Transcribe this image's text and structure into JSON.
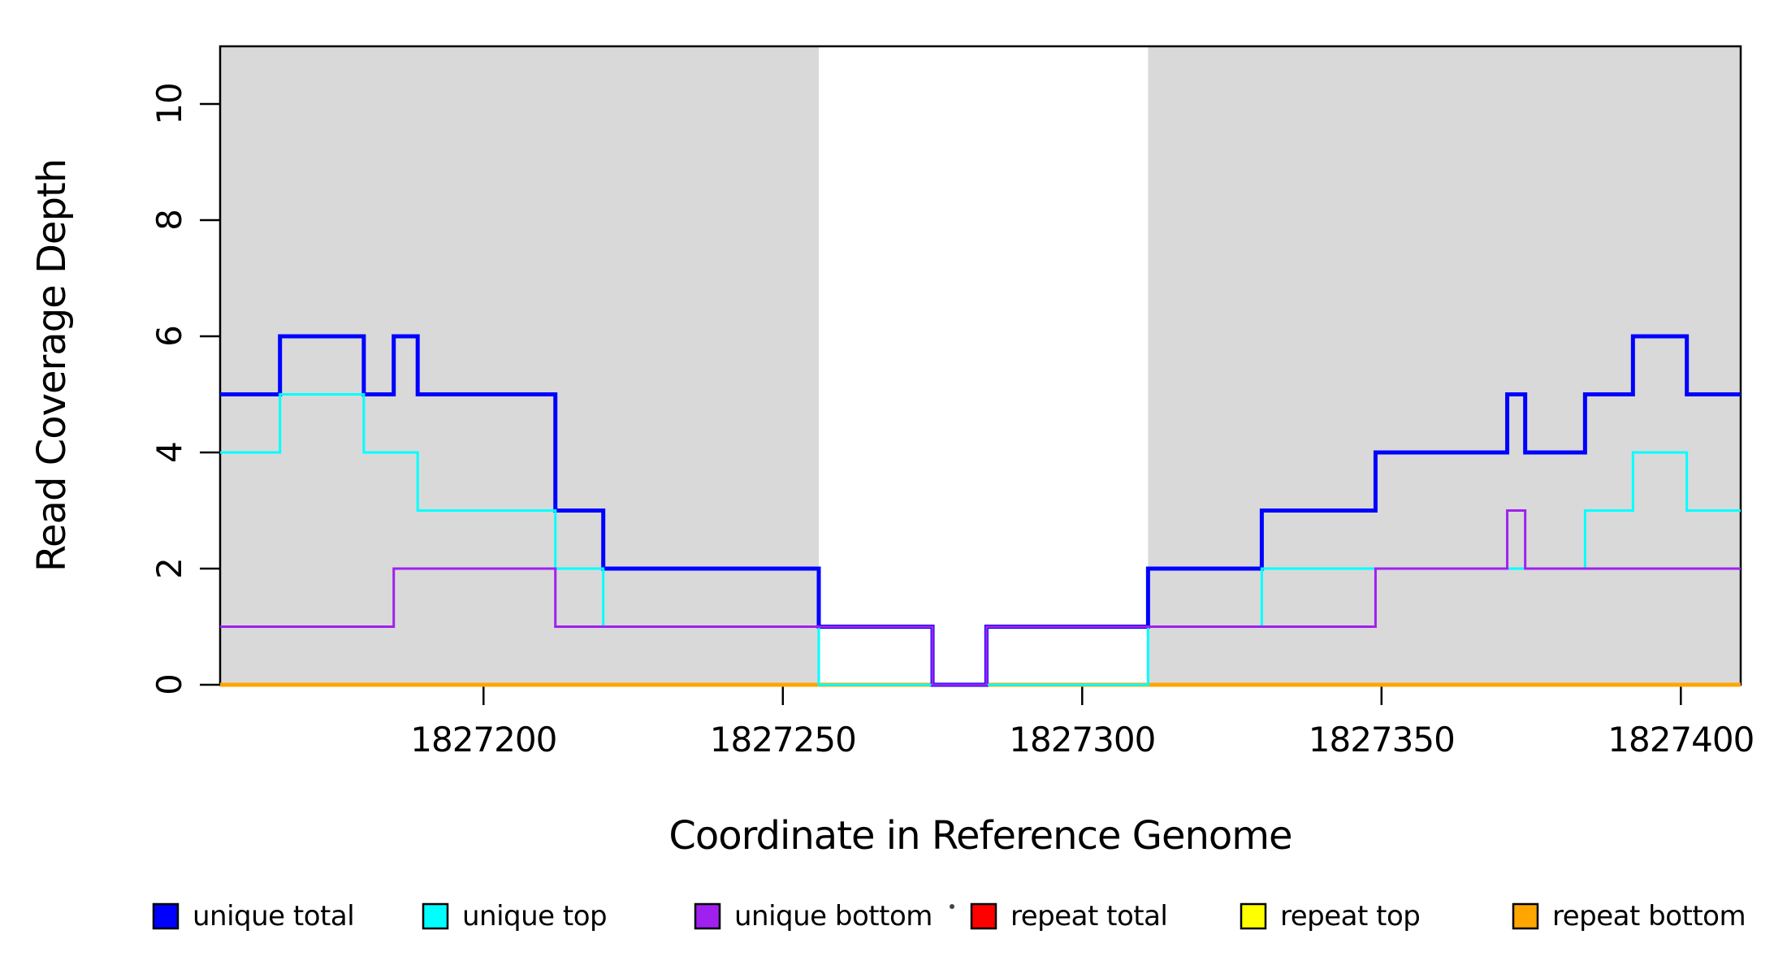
{
  "figure": {
    "x_axis_label": "Coordinate in Reference Genome",
    "y_axis_label": "Read Coverage Depth"
  },
  "chart_data": {
    "type": "line",
    "subtype": "step-after-coverage",
    "title": "",
    "xlabel": "Coordinate in Reference Genome",
    "ylabel": "Read Coverage Depth",
    "x_range": [
      1827156,
      1827410
    ],
    "y_range": [
      0,
      11
    ],
    "x_ticks": [
      "1827200",
      "1827250",
      "1827300",
      "1827350",
      "1827400"
    ],
    "x_tick_values": [
      1827200,
      1827250,
      1827300,
      1827350,
      1827400
    ],
    "y_ticks": [
      "0",
      "2",
      "4",
      "6",
      "8",
      "10"
    ],
    "y_tick_values": [
      0,
      2,
      4,
      6,
      8,
      10
    ],
    "grid": false,
    "plot_background": "#FFFFFF",
    "shaded_regions": [
      {
        "name": "unique-mappability-left",
        "from": 1827156,
        "to": 1827256,
        "color": "#D9D9D9"
      },
      {
        "name": "unique-mappability-right",
        "from": 1827311,
        "to": 1827410,
        "color": "#D9D9D9"
      }
    ],
    "series": [
      {
        "name": "repeat total",
        "color": "#FF0000",
        "width": 3,
        "breakpoints": [
          [
            1827156,
            0
          ]
        ]
      },
      {
        "name": "repeat top",
        "color": "#FFFF00",
        "width": 3,
        "breakpoints": [
          [
            1827156,
            0
          ]
        ]
      },
      {
        "name": "repeat bottom",
        "color": "#FFA500",
        "width": 5,
        "breakpoints": [
          [
            1827156,
            0
          ]
        ]
      },
      {
        "name": "unique total",
        "color": "#0000FF",
        "width": 5,
        "breakpoints": [
          [
            1827156,
            5
          ],
          [
            1827166,
            6
          ],
          [
            1827180,
            5
          ],
          [
            1827185,
            6
          ],
          [
            1827189,
            5
          ],
          [
            1827212,
            3
          ],
          [
            1827220,
            2
          ],
          [
            1827256,
            1
          ],
          [
            1827275,
            0
          ],
          [
            1827284,
            1
          ],
          [
            1827311,
            2
          ],
          [
            1827330,
            3
          ],
          [
            1827349,
            4
          ],
          [
            1827371,
            5
          ],
          [
            1827374,
            4
          ],
          [
            1827384,
            5
          ],
          [
            1827392,
            6
          ],
          [
            1827401,
            5
          ]
        ]
      },
      {
        "name": "unique top",
        "color": "#00FFFF",
        "width": 3,
        "breakpoints": [
          [
            1827156,
            4
          ],
          [
            1827166,
            5
          ],
          [
            1827180,
            4
          ],
          [
            1827189,
            3
          ],
          [
            1827212,
            2
          ],
          [
            1827220,
            1
          ],
          [
            1827256,
            0
          ],
          [
            1827311,
            1
          ],
          [
            1827330,
            2
          ],
          [
            1827384,
            3
          ],
          [
            1827392,
            4
          ],
          [
            1827401,
            3
          ]
        ]
      },
      {
        "name": "unique bottom",
        "color": "#A020F0",
        "width": 3,
        "breakpoints": [
          [
            1827156,
            1
          ],
          [
            1827185,
            2
          ],
          [
            1827212,
            1
          ],
          [
            1827275,
            0
          ],
          [
            1827284,
            1
          ],
          [
            1827349,
            2
          ],
          [
            1827371,
            3
          ],
          [
            1827374,
            2
          ]
        ]
      }
    ],
    "legend": {
      "position": "bottom",
      "items": [
        {
          "label": "unique total",
          "color": "#0000FF"
        },
        {
          "label": "unique top",
          "color": "#00FFFF"
        },
        {
          "label": "unique bottom",
          "color": "#A020F0"
        },
        {
          "label": "repeat total",
          "color": "#FF0000"
        },
        {
          "label": "repeat top",
          "color": "#FFFF00"
        },
        {
          "label": "repeat bottom",
          "color": "#FFA500"
        }
      ]
    }
  }
}
